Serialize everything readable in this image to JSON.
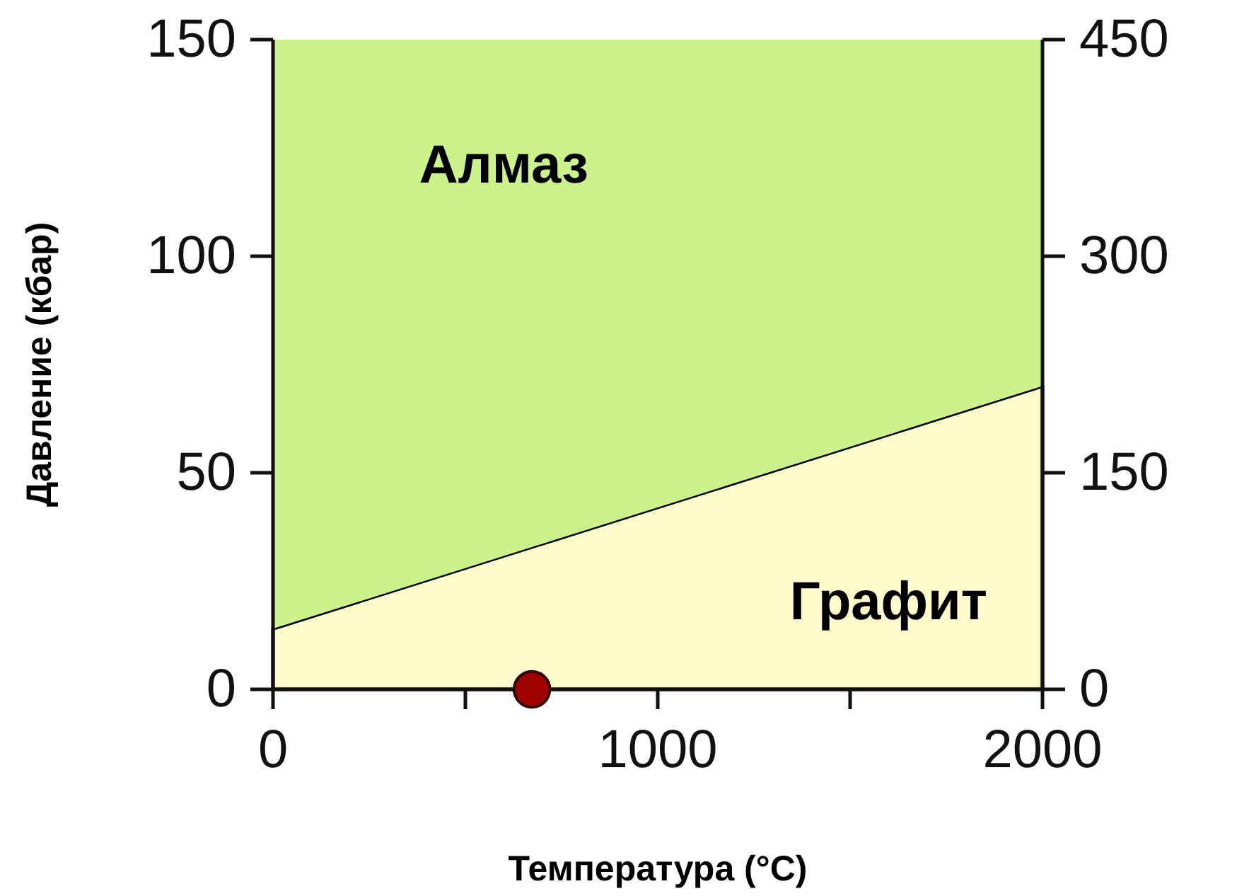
{
  "chart_data": {
    "type": "area",
    "stacked": true,
    "xlabel": "Температура (°C)",
    "ylabel": "Давление (кбар)",
    "xlim": [
      0,
      2000
    ],
    "xticks": [
      0,
      {
        "value": 500,
        "label": null
      },
      1000,
      {
        "value": 1500,
        "label": null
      },
      2000
    ],
    "ylim": [
      0,
      150
    ],
    "yticks": [
      0,
      50,
      100,
      150
    ],
    "y2lim": [
      0,
      450
    ],
    "y2ticks": [
      0,
      150,
      300,
      450
    ],
    "series": [
      {
        "name": "Графит",
        "color": "#fffacc",
        "x": [
          0,
          2000
        ],
        "values": [
          14,
          70
        ]
      },
      {
        "name": "Алмаз",
        "color": "#ccf28c",
        "x": [
          0,
          2000
        ],
        "values": [
          136,
          80
        ]
      },
      {
        "type": "scatter",
        "color": "#a00000",
        "marker": "circle",
        "x": [
          673
        ],
        "values": [
          0
        ]
      }
    ],
    "grid": false,
    "legend": false
  }
}
